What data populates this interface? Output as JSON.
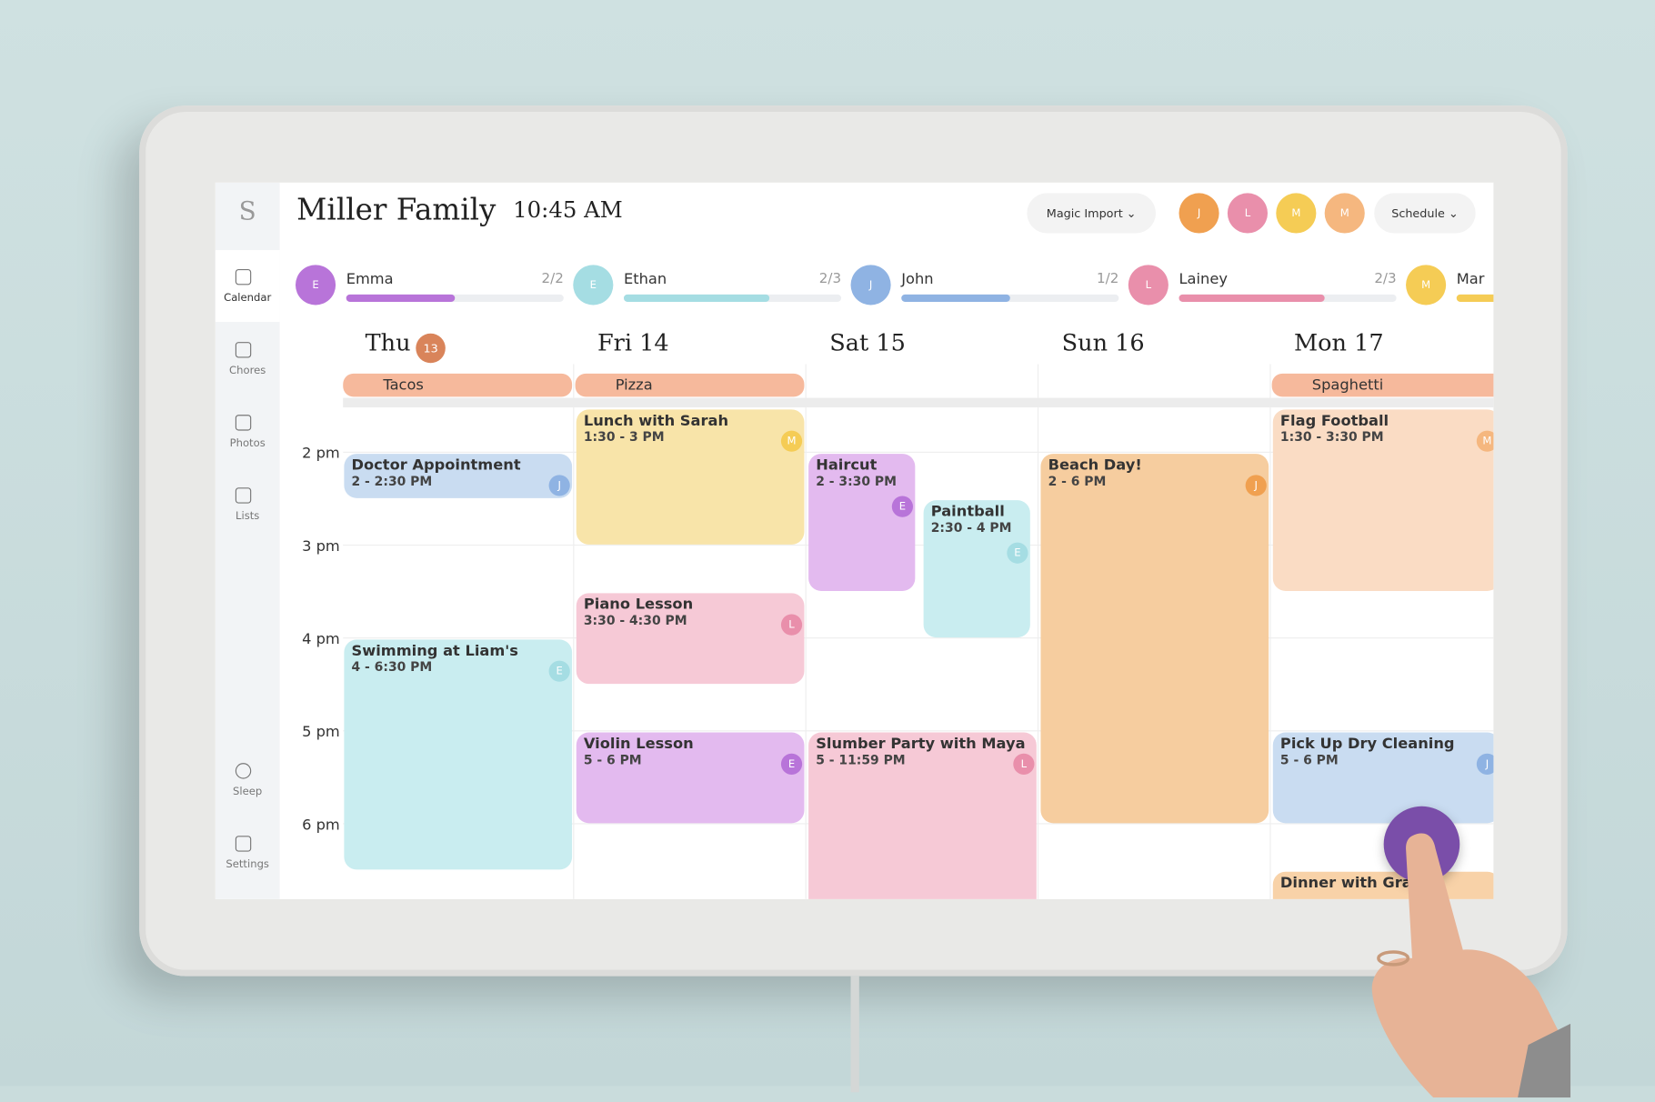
{
  "sidebar": {
    "logo": "S",
    "nav": [
      "Calendar",
      "Chores",
      "Photos",
      "Lists",
      "Sleep",
      "Settings"
    ]
  },
  "header": {
    "title": "Miller Family",
    "time": "10:45 AM",
    "magic_import": "Magic Import",
    "schedule": "Schedule",
    "avatars": [
      "J",
      "L",
      "M",
      "M"
    ]
  },
  "members": [
    {
      "initial": "E",
      "name": "Emma",
      "progress": "2/2",
      "color": "#b874d9"
    },
    {
      "initial": "E",
      "name": "Ethan",
      "progress": "2/3",
      "color": "#a5dde3"
    },
    {
      "initial": "J",
      "name": "John",
      "progress": "1/2",
      "color": "#8fb3e3"
    },
    {
      "initial": "L",
      "name": "Lainey",
      "progress": "2/3",
      "color": "#e98fab"
    },
    {
      "initial": "M",
      "name": "Mar",
      "color": "#f5cc55"
    }
  ],
  "days": [
    {
      "label": "Thu",
      "badge": "13"
    },
    {
      "label": "Fri 14"
    },
    {
      "label": "Sat 15"
    },
    {
      "label": "Sun 16"
    },
    {
      "label": "Mon 17"
    }
  ],
  "meals": [
    "Tacos",
    "Pizza",
    null,
    null,
    "Spaghetti"
  ],
  "times": [
    "2 pm",
    "3 pm",
    "4 pm",
    "5 pm",
    "6 pm"
  ],
  "events": [
    {
      "title": "Doctor Appointment",
      "time": "2 - 2:30 PM",
      "initial": "J",
      "color": "#c9dcf1",
      "dot": "#8fb3e3"
    },
    {
      "title": "Swimming at Liam's",
      "time": "4 - 6:30 PM",
      "initial": "E",
      "color": "#c9edf0",
      "dot": "#a5dde3"
    },
    {
      "title": "Lunch with Sarah",
      "time": "1:30 - 3 PM",
      "initial": "M",
      "color": "#f8e4a9",
      "dot": "#f5cc55"
    },
    {
      "title": "Piano Lesson",
      "time": "3:30 - 4:30 PM",
      "initial": "L",
      "color": "#f6c9d6",
      "dot": "#e98fab"
    },
    {
      "title": "Violin Lesson",
      "time": "5 - 6 PM",
      "initial": "E",
      "color": "#e3baef",
      "dot": "#b874d9"
    },
    {
      "title": "Haircut",
      "time": "2 - 3:30 PM",
      "initial": "E",
      "color": "#e3baef",
      "dot": "#b874d9"
    },
    {
      "title": "Paintball",
      "time": "2:30 - 4 PM",
      "initial": "E",
      "color": "#c9edf0",
      "dot": "#a5dde3"
    },
    {
      "title": "Slumber Party with Maya",
      "time": "5 - 11:59 PM",
      "initial": "L",
      "color": "#f6c9d6",
      "dot": "#e98fab"
    },
    {
      "title": "Beach Day!",
      "time": "2 - 6 PM",
      "initial": "J",
      "color": "#f6cd9f",
      "dot": "#f0a050"
    },
    {
      "title": "Flag Football",
      "time": "1:30 - 3:30 PM",
      "initial": "M",
      "color": "#fadcc4",
      "dot": "#f5b77f"
    },
    {
      "title": "Pick Up Dry Cleaning",
      "time": "5 - 6 PM",
      "initial": "J",
      "color": "#c9dcf1",
      "dot": "#8fb3e3"
    },
    {
      "title": "Dinner with Gran",
      "color": "#f8d2a8"
    }
  ]
}
